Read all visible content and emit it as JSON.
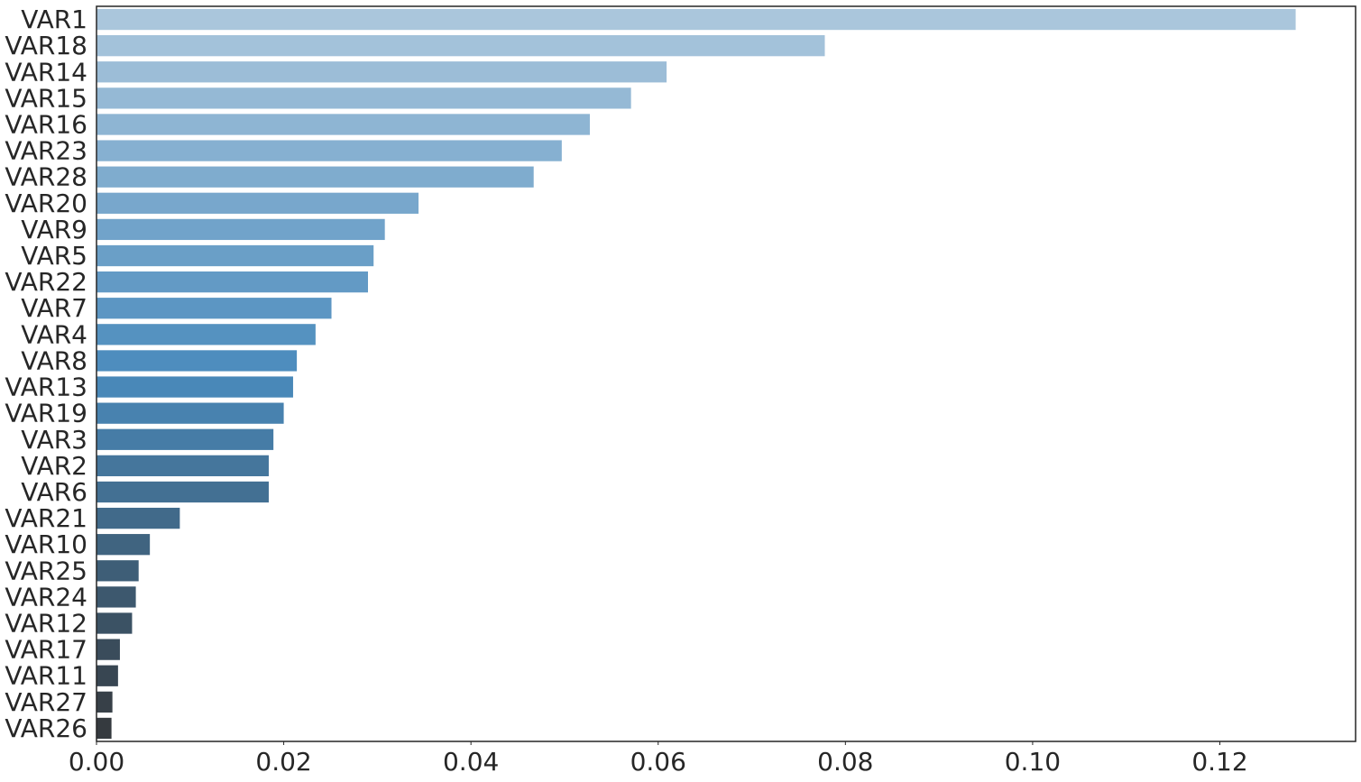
{
  "chart_data": {
    "type": "bar",
    "orientation": "horizontal",
    "title": "",
    "xlabel": "",
    "ylabel": "",
    "xlim": [
      0,
      0.1345
    ],
    "xticks": [
      0.0,
      0.02,
      0.04,
      0.06,
      0.08,
      0.1,
      0.12
    ],
    "xtick_labels": [
      "0.00",
      "0.02",
      "0.04",
      "0.06",
      "0.08",
      "0.10",
      "0.12"
    ],
    "grid": false,
    "legend": "none",
    "palette": "Blues_d",
    "color_start": "#aac6dc",
    "color_end": "#353a3f",
    "categories": [
      "VAR1",
      "VAR18",
      "VAR14",
      "VAR15",
      "VAR16",
      "VAR23",
      "VAR28",
      "VAR20",
      "VAR9",
      "VAR5",
      "VAR22",
      "VAR7",
      "VAR4",
      "VAR8",
      "VAR13",
      "VAR19",
      "VAR3",
      "VAR2",
      "VAR6",
      "VAR21",
      "VAR10",
      "VAR25",
      "VAR24",
      "VAR12",
      "VAR17",
      "VAR11",
      "VAR27",
      "VAR26"
    ],
    "values": [
      0.1281,
      0.0778,
      0.0609,
      0.0571,
      0.0527,
      0.0497,
      0.0467,
      0.0344,
      0.0308,
      0.0296,
      0.029,
      0.0251,
      0.0234,
      0.0214,
      0.021,
      0.02,
      0.0189,
      0.0184,
      0.0184,
      0.0089,
      0.0057,
      0.0045,
      0.0042,
      0.0038,
      0.0025,
      0.0023,
      0.0017,
      0.0016
    ]
  }
}
